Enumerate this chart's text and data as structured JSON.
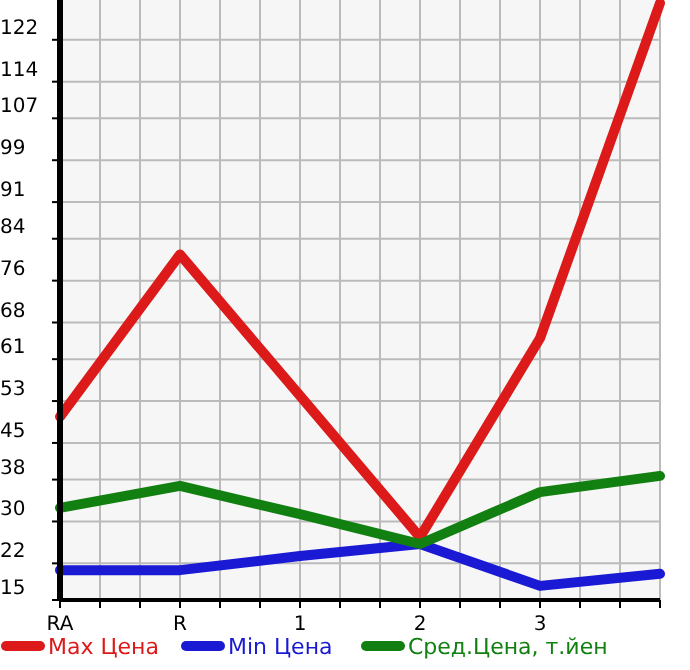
{
  "chart_data": {
    "type": "line",
    "categories": [
      "RA",
      "R",
      "1",
      "2",
      "3",
      null
    ],
    "ylim": [
      15,
      129.6
    ],
    "yticks": [
      15,
      22,
      30,
      38,
      45,
      53,
      61,
      68,
      76,
      84,
      91,
      99,
      107,
      114,
      122
    ],
    "grid": true,
    "legend": "bottom",
    "marker": "none",
    "line_style": "solid",
    "series": [
      {
        "name": "Max Цена",
        "color": "#dd1a1a",
        "values": [
          50,
          81,
          54,
          27,
          65,
          129
        ]
      },
      {
        "name": "Min Цена",
        "color": "#1a1ad4",
        "values": [
          20.7,
          20.7,
          23.4,
          25.7,
          17.7,
          20
        ]
      },
      {
        "name": "Сред.Цена, т.йен",
        "color": "#118011",
        "values": [
          32.6,
          36.8,
          31.4,
          25.7,
          35.6,
          38.7
        ]
      }
    ]
  }
}
